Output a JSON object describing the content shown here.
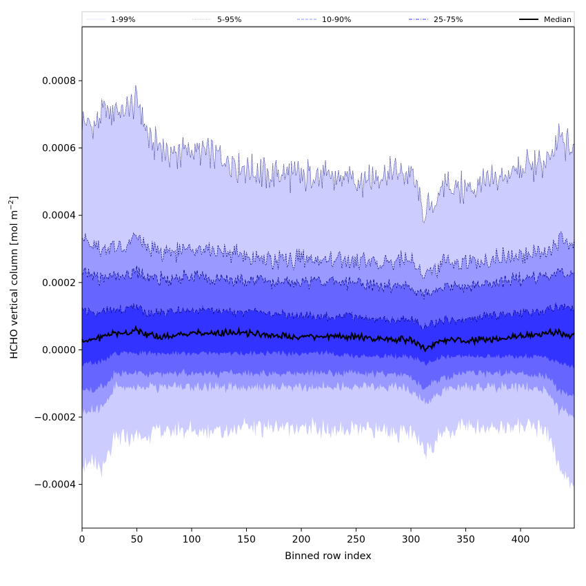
{
  "chart_data": {
    "type": "area",
    "xlabel": "Binned row index",
    "ylabel_main": "HCHO vertical column [mol m",
    "ylabel_sup": "−2",
    "ylabel_close": "]",
    "xlim": [
      0,
      449
    ],
    "ylim": [
      -0.00053,
      0.00096
    ],
    "xticks": [
      0,
      50,
      100,
      150,
      200,
      250,
      300,
      350,
      400
    ],
    "xtick_labels": [
      "0",
      "50",
      "100",
      "150",
      "200",
      "250",
      "300",
      "350",
      "400"
    ],
    "yticks": [
      -0.0004,
      -0.0002,
      0.0,
      0.0002,
      0.0004,
      0.0006,
      0.0008
    ],
    "ytick_labels": [
      "−0.0004",
      "−0.0002",
      "0.0000",
      "0.0002",
      "0.0004",
      "0.0006",
      "0.0008"
    ],
    "legend": {
      "placement": "top",
      "entries": [
        {
          "label": "1-99%",
          "color": "#d0d0ff",
          "dash": "solid"
        },
        {
          "label": "5-95%",
          "color": "#8080ff",
          "dash": "dotted"
        },
        {
          "label": "10-90%",
          "color": "#6a6aff",
          "dash": "dashed"
        },
        {
          "label": "25-75%",
          "color": "#3a3aff",
          "dash": "dashdot"
        },
        {
          "label": "Median",
          "color": "#000000",
          "dash": "solid"
        }
      ]
    },
    "colors": {
      "band_1_99": "#ccccff",
      "band_5_95": "#9999ff",
      "band_10_90": "#6666ff",
      "band_25_75": "#3333ff",
      "percentile_line": "#00007a",
      "median": "#000000"
    },
    "series": [
      {
        "name": "1-99%",
        "x": [
          0,
          10,
          20,
          30,
          40,
          50,
          60,
          80,
          100,
          125,
          150,
          175,
          200,
          225,
          250,
          275,
          300,
          313,
          330,
          350,
          375,
          400,
          425,
          435,
          449
        ],
        "upper": [
          0.00068,
          0.00066,
          0.0007,
          0.00072,
          0.0007,
          0.00075,
          0.00063,
          0.00058,
          0.0006,
          0.00057,
          0.00054,
          0.00052,
          0.00052,
          0.00051,
          0.00051,
          0.00052,
          0.00052,
          0.0004,
          0.00049,
          0.00048,
          0.0005,
          0.00054,
          0.00056,
          0.00062,
          0.0006
        ],
        "lower": [
          -0.00034,
          -0.00034,
          -0.00035,
          -0.00027,
          -0.00026,
          -0.00026,
          -0.00025,
          -0.00024,
          -0.00024,
          -0.00024,
          -0.00023,
          -0.00023,
          -0.00023,
          -0.00024,
          -0.00024,
          -0.00024,
          -0.00025,
          -0.0003,
          -0.00024,
          -0.00023,
          -0.00023,
          -0.00023,
          -0.00024,
          -0.00036,
          -0.0004
        ]
      },
      {
        "name": "5-95%",
        "x": [
          0,
          10,
          20,
          30,
          40,
          50,
          60,
          80,
          100,
          125,
          150,
          175,
          200,
          225,
          250,
          275,
          300,
          313,
          330,
          350,
          375,
          400,
          425,
          435,
          449
        ],
        "upper": [
          0.00033,
          0.00032,
          0.0003,
          0.00031,
          0.0003,
          0.00034,
          0.0003,
          0.00029,
          0.0003,
          0.00029,
          0.00028,
          0.00027,
          0.00027,
          0.00027,
          0.00026,
          0.00026,
          0.00027,
          0.00022,
          0.00026,
          0.00026,
          0.00027,
          0.00028,
          0.00029,
          0.00033,
          0.00031
        ],
        "lower": [
          -0.00018,
          -0.00018,
          -0.00017,
          -0.00011,
          -0.00011,
          -0.00011,
          -0.00011,
          -0.00011,
          -0.00011,
          -0.00011,
          -0.00011,
          -0.00011,
          -0.00011,
          -0.00011,
          -0.00011,
          -0.00011,
          -0.00012,
          -0.00016,
          -0.00012,
          -0.00011,
          -0.00011,
          -0.00011,
          -0.00012,
          -0.00018,
          -0.0002
        ]
      },
      {
        "name": "10-90%",
        "x": [
          0,
          10,
          20,
          30,
          40,
          50,
          60,
          80,
          100,
          125,
          150,
          175,
          200,
          225,
          250,
          275,
          300,
          313,
          330,
          350,
          375,
          400,
          425,
          435,
          449
        ],
        "upper": [
          0.00023,
          0.00022,
          0.00021,
          0.00022,
          0.00022,
          0.00024,
          0.00021,
          0.00021,
          0.00022,
          0.00021,
          0.00021,
          0.0002,
          0.0002,
          0.0002,
          0.0002,
          0.00019,
          0.00019,
          0.00016,
          0.00019,
          0.00019,
          0.0002,
          0.00021,
          0.00022,
          0.00024,
          0.00023
        ],
        "lower": [
          -0.00012,
          -0.00012,
          -0.00011,
          -7e-05,
          -7e-05,
          -7e-05,
          -7e-05,
          -7e-05,
          -7e-05,
          -7e-05,
          -7e-05,
          -7e-05,
          -7e-05,
          -7e-05,
          -7e-05,
          -7e-05,
          -8e-05,
          -0.00011,
          -8e-05,
          -7e-05,
          -7e-05,
          -7e-05,
          -8e-05,
          -0.00012,
          -0.00014
        ]
      },
      {
        "name": "25-75%",
        "x": [
          0,
          10,
          20,
          30,
          40,
          50,
          60,
          80,
          100,
          125,
          150,
          175,
          200,
          225,
          250,
          275,
          300,
          313,
          330,
          350,
          375,
          400,
          425,
          435,
          449
        ],
        "upper": [
          0.00012,
          0.00011,
          0.00011,
          0.00012,
          0.00012,
          0.00013,
          0.00011,
          0.00011,
          0.00012,
          0.00011,
          0.00011,
          0.00011,
          0.0001,
          0.0001,
          0.0001,
          9e-05,
          9e-05,
          7e-05,
          9e-05,
          9e-05,
          0.0001,
          0.00011,
          0.00012,
          0.00013,
          0.00012
        ],
        "lower": [
          -4e-05,
          -4e-05,
          -3e-05,
          -1e-05,
          -1e-05,
          -1e-05,
          -1e-05,
          -1e-05,
          -1e-05,
          -1e-05,
          -1e-05,
          -1e-05,
          -1e-05,
          -1e-05,
          -2e-05,
          -2e-05,
          -2e-05,
          -4e-05,
          -2e-05,
          -2e-05,
          -2e-05,
          -2e-05,
          -2e-05,
          -4e-05,
          -5e-05
        ]
      },
      {
        "name": "Median",
        "x": [
          0,
          10,
          20,
          30,
          40,
          50,
          60,
          80,
          100,
          125,
          150,
          175,
          200,
          225,
          250,
          275,
          300,
          313,
          330,
          350,
          375,
          400,
          425,
          435,
          449
        ],
        "values": [
          3e-05,
          3e-05,
          4e-05,
          5e-05,
          5e-05,
          6e-05,
          4e-05,
          4e-05,
          5e-05,
          5e-05,
          5e-05,
          4e-05,
          4e-05,
          4e-05,
          4e-05,
          3e-05,
          3e-05,
          0.0,
          3e-05,
          3e-05,
          3e-05,
          4e-05,
          5e-05,
          5e-05,
          4e-05
        ]
      }
    ]
  }
}
